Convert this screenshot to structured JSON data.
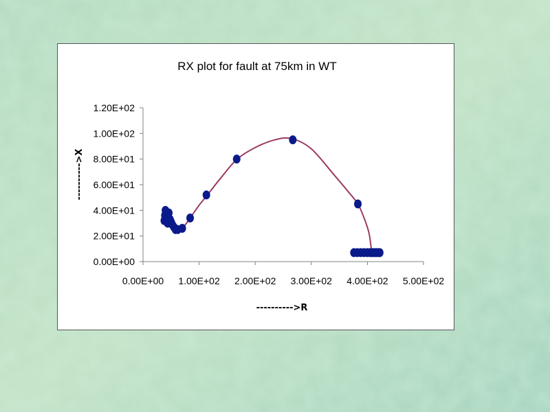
{
  "colors": {
    "background": "#b9dcc4",
    "curve": "#9b3a63",
    "marker": "#0a1a8a",
    "axis": "#808080"
  },
  "chart_data": {
    "type": "scatter",
    "title": "RX plot for fault at 75km  in WT",
    "xlabel": "---------->R",
    "ylabel": "---------->X",
    "xlim": [
      0,
      500
    ],
    "ylim": [
      0,
      120
    ],
    "x_ticks": [
      0,
      100,
      200,
      300,
      400,
      500
    ],
    "y_ticks": [
      0,
      20,
      40,
      60,
      80,
      100,
      120
    ],
    "x_tick_labels": [
      "0.00E+00",
      "1.00E+02",
      "2.00E+02",
      "3.00E+02",
      "4.00E+02",
      "5.00E+02"
    ],
    "y_tick_labels": [
      "0.00E+00",
      "2.00E+01",
      "4.00E+01",
      "6.00E+01",
      "8.00E+01",
      "1.00E+02",
      "1.20E+02"
    ],
    "grid": false,
    "legend": false,
    "series": [
      {
        "line": [
          [
            40,
            35
          ],
          [
            45,
            32
          ],
          [
            52,
            29
          ],
          [
            60,
            25
          ],
          [
            70,
            26
          ],
          [
            84,
            34
          ],
          [
            100,
            44
          ],
          [
            113,
            51
          ],
          [
            140,
            66
          ],
          [
            168,
            80
          ],
          [
            200,
            89
          ],
          [
            235,
            95
          ],
          [
            265,
            96
          ],
          [
            300,
            88
          ],
          [
            340,
            68
          ],
          [
            365,
            55
          ],
          [
            383,
            45
          ],
          [
            395,
            33
          ],
          [
            403,
            22
          ],
          [
            407,
            10
          ],
          [
            409,
            7
          ]
        ],
        "points": [
          [
            38,
            32
          ],
          [
            39,
            36
          ],
          [
            40,
            40
          ],
          [
            42,
            37
          ],
          [
            43,
            33
          ],
          [
            44,
            30
          ],
          [
            45,
            35
          ],
          [
            46,
            38
          ],
          [
            48,
            33
          ],
          [
            50,
            31
          ],
          [
            52,
            29
          ],
          [
            55,
            27
          ],
          [
            58,
            25
          ],
          [
            62,
            25
          ],
          [
            70,
            26
          ],
          [
            84,
            34
          ],
          [
            113,
            52
          ],
          [
            167,
            80
          ],
          [
            267,
            95
          ],
          [
            383,
            45
          ],
          [
            376,
            7
          ],
          [
            382,
            7
          ],
          [
            388,
            7
          ],
          [
            394,
            7
          ],
          [
            400,
            7
          ],
          [
            405,
            7
          ],
          [
            408,
            7
          ],
          [
            411,
            7
          ],
          [
            414,
            7
          ],
          [
            417,
            7
          ],
          [
            420,
            7
          ],
          [
            422,
            7
          ]
        ]
      }
    ]
  }
}
